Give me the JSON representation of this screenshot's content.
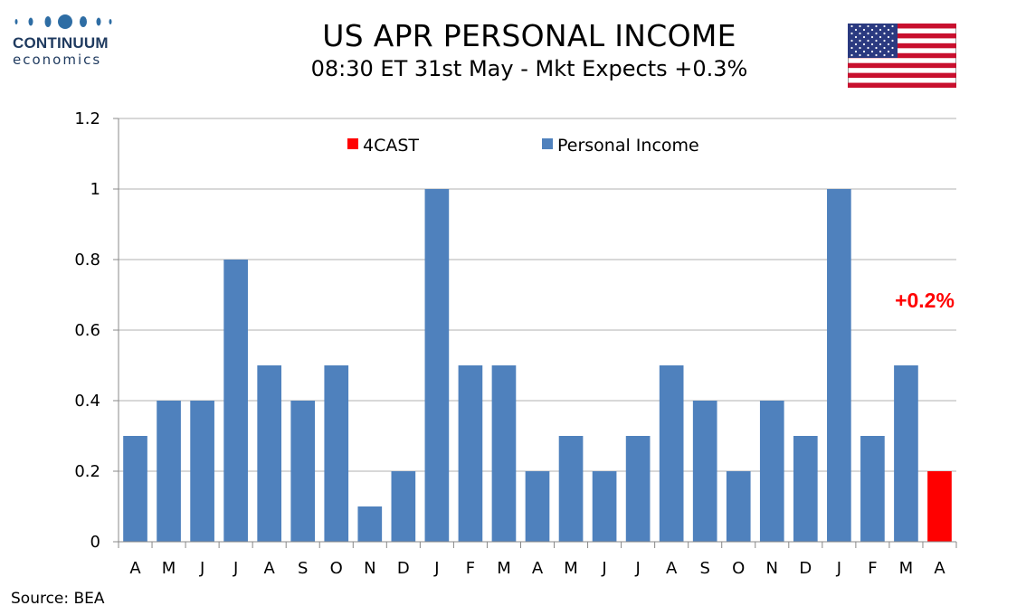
{
  "header": {
    "logo_name": "CONTINUUM",
    "logo_sub": "economics",
    "title": "US APR PERSONAL INCOME",
    "subtitle": "08:30 ET 31st May - Mkt Expects +0.3%",
    "flag_icon": "us-flag-icon"
  },
  "source": "Source: BEA",
  "colors": {
    "series": "#4f81bd",
    "forecast": "#ff0000",
    "grid": "#b0b0b0",
    "brand": "#1f3a5f"
  },
  "chart_data": {
    "type": "bar",
    "categories": [
      "A",
      "M",
      "J",
      "J",
      "A",
      "S",
      "O",
      "N",
      "D",
      "J",
      "F",
      "M",
      "A",
      "M",
      "J",
      "J",
      "A",
      "S",
      "O",
      "N",
      "D",
      "J",
      "F",
      "M",
      "A"
    ],
    "series": [
      {
        "name": "Personal Income",
        "color": "#4f81bd",
        "values": [
          0.3,
          0.4,
          0.4,
          0.8,
          0.5,
          0.4,
          0.5,
          0.1,
          0.2,
          1.0,
          0.5,
          0.5,
          0.2,
          0.3,
          0.2,
          0.3,
          0.5,
          0.4,
          0.2,
          0.4,
          0.3,
          1.0,
          0.3,
          0.5,
          null
        ]
      },
      {
        "name": "4CAST",
        "color": "#ff0000",
        "values": [
          null,
          null,
          null,
          null,
          null,
          null,
          null,
          null,
          null,
          null,
          null,
          null,
          null,
          null,
          null,
          null,
          null,
          null,
          null,
          null,
          null,
          null,
          null,
          null,
          0.2
        ]
      }
    ],
    "ylim": [
      0,
      1.2
    ],
    "yticks": [
      "0",
      "0.2",
      "0.4",
      "0.6",
      "0.8",
      "1",
      "1.2"
    ],
    "ytick_values": [
      0,
      0.2,
      0.4,
      0.6,
      0.8,
      1.0,
      1.2
    ],
    "legend": [
      {
        "label": "4CAST",
        "color": "#ff0000"
      },
      {
        "label": "Personal Income",
        "color": "#4f81bd"
      }
    ],
    "legend_position": "top",
    "grid": true,
    "annotation": "+0.2%"
  }
}
